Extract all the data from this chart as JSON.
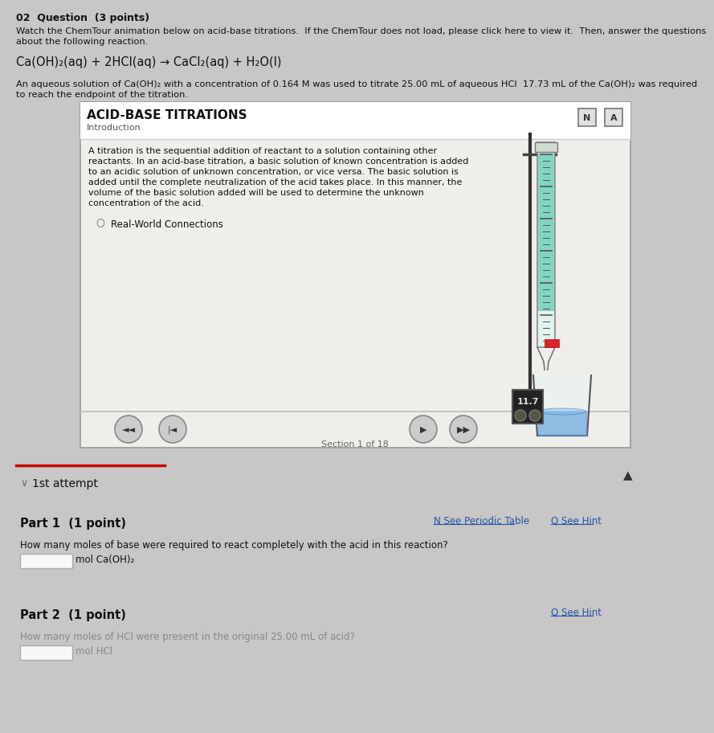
{
  "bg_color": "#c8c6c6",
  "page_bg": "#c8c6c6",
  "header_text": "02  Question  (3 points)",
  "intro_line1": "Watch the ChemTour animation below on acid-base titrations.  If the ChemTour does not load, please click here to view it.  Then, answer the questions",
  "intro_line2": "about the following reaction.",
  "reaction": "Ca(OH)₂(aq) + 2HCl(aq) → CaCl₂(aq) + H₂O(l)",
  "desc_line1": "An aqueous solution of Ca(OH)₂ with a concentration of 0.164 M was used to titrate 25.00 mL of aqueous HCl  17.73 mL of the Ca(OH)₂ was required",
  "desc_line2": "to reach the endpoint of the titration.",
  "panel_title": "ACID-BASE TITRATIONS",
  "panel_subtitle": "Introduction",
  "panel_body_lines": [
    "A titration is the sequential addition of reactant to a solution containing other",
    "reactants. In an acid-base titration, a basic solution of known concentration is added",
    "to an acidic solution of unknown concentration, or vice versa. The basic solution is",
    "added until the complete neutralization of the acid takes place. In this manner, the",
    "volume of the basic solution added will be used to determine the unknown",
    "concentration of the acid."
  ],
  "real_world": "Real-World Connections",
  "section_text": "Section 1 of 18",
  "attempt_text": "1st attempt",
  "part1_label": "Part 1  (1 point)",
  "part1_right1": "N See Periodic Table",
  "part1_right2": "Q See Hint",
  "part1_question": "How many moles of base were required to react completely with the acid in this reaction?",
  "part1_unit": "mol Ca(OH)₂",
  "part2_label": "Part 2  (1 point)",
  "part2_right": "Q See Hint",
  "part2_question": "How many moles of HCl were present in the original 25.00 mL of acid?",
  "part2_unit": "mol HCl",
  "panel_bg": "#f0eeea",
  "panel_border": "#999999",
  "white_bg": "#ffffff",
  "text_dark": "#111111",
  "text_gray": "#888888",
  "red_line_color": "#cc0000",
  "link_color": "#2255aa",
  "burette_green": "#5dc9b0",
  "burette_tube_color": "#ddeedd",
  "burette_stand_color": "#555555",
  "beaker_liquid_color": "#5599dd",
  "display_bg": "#222222",
  "display_text": "#dddddd",
  "btn_color": "#cccccc",
  "btn_border": "#888888",
  "red_stopcock": "#dd2222"
}
